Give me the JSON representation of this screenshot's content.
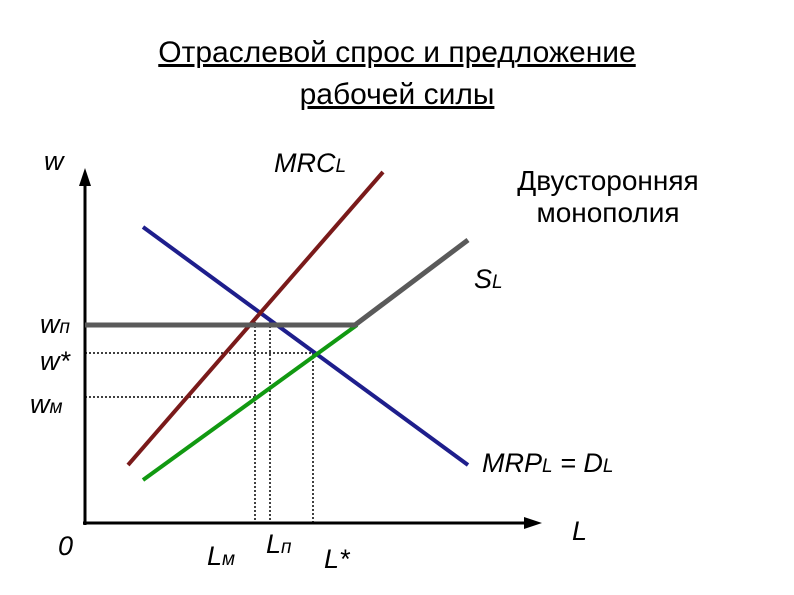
{
  "header": {
    "title": [
      "Отраслевой спрос и предложение",
      "рабочей силы"
    ]
  },
  "axes": {
    "y_label": "w",
    "x_label": "L",
    "origin": "0"
  },
  "curves": {
    "mrc": {
      "main": "MRC",
      "sub": "L"
    },
    "supply": {
      "main": "S",
      "sub": "L"
    },
    "demand": {
      "main": "MRP",
      "sub": "L",
      "eq": " = D",
      "sub2": "L"
    }
  },
  "note": [
    "Двусторонняя",
    "монополия"
  ],
  "wage_labels": {
    "wp": {
      "main": "w",
      "sub": "п"
    },
    "wstar": "w*",
    "wm": {
      "main": "w",
      "sub": "м"
    }
  },
  "quantity_labels": {
    "lm": {
      "main": "L",
      "sub": "м"
    },
    "lp": {
      "main": "L",
      "sub": "п"
    },
    "lstar": "L*"
  }
}
